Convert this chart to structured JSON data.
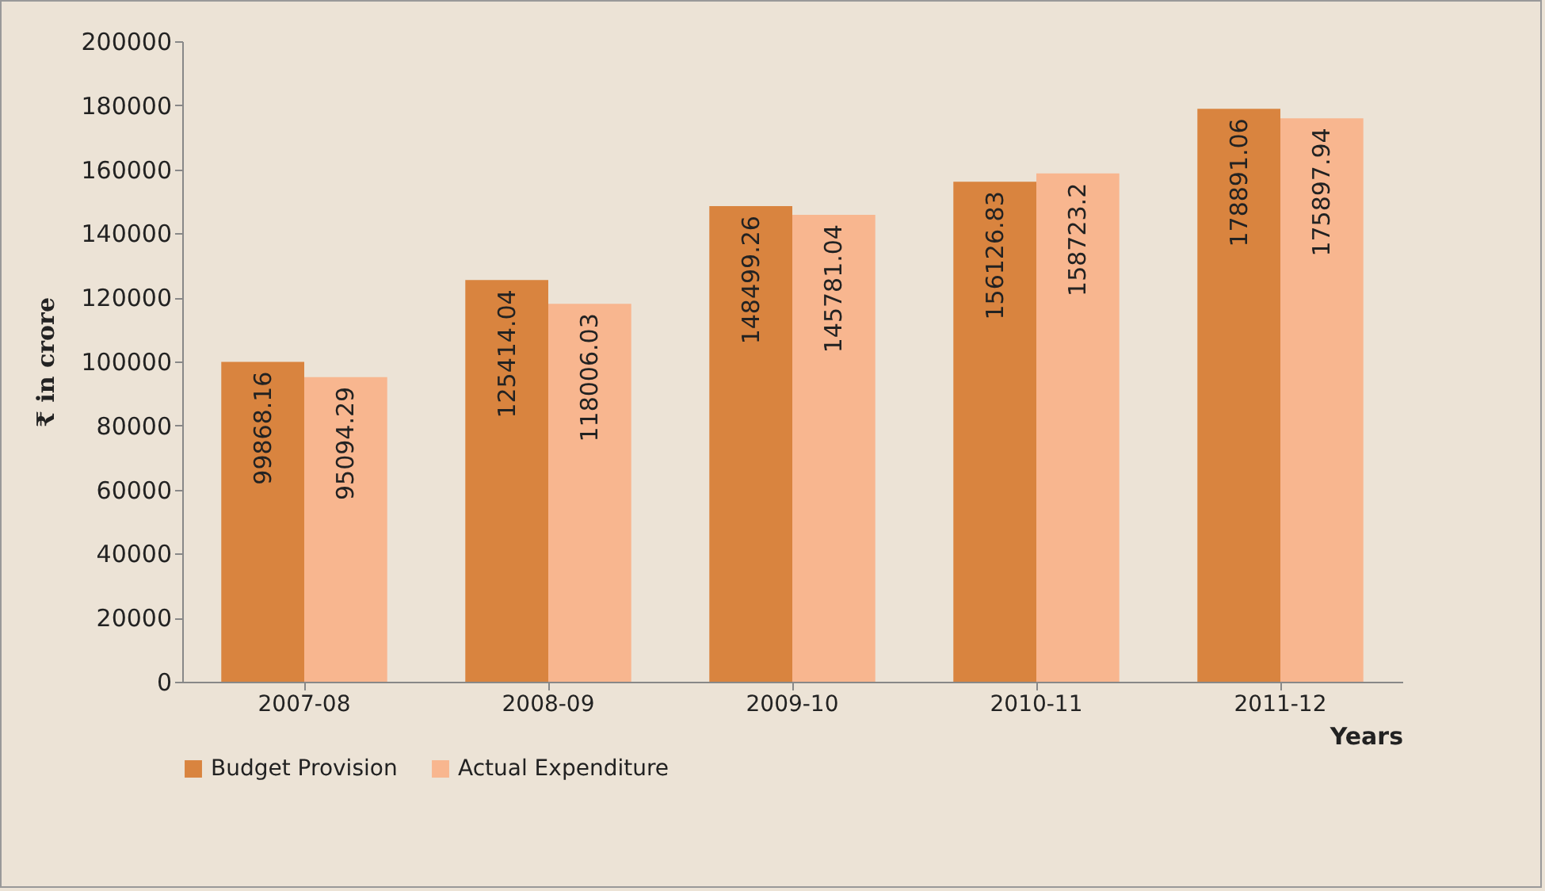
{
  "chart_data": {
    "type": "bar",
    "xlabel": "Years",
    "ylabel": "₹ in crore",
    "categories": [
      "2007-08",
      "2008-09",
      "2009-10",
      "2010-11",
      "2011-12"
    ],
    "series": [
      {
        "name": "Budget Provision",
        "color": "#d9843f",
        "values": [
          99868.16,
          125414.04,
          148499.26,
          156126.83,
          178891.06
        ]
      },
      {
        "name": "Actual Expenditure",
        "color": "#f8b68f",
        "values": [
          95094.29,
          118006.03,
          145781.04,
          158723.2,
          175897.94
        ]
      }
    ],
    "ylim": [
      0,
      200000
    ],
    "yticks": [
      0,
      20000,
      40000,
      60000,
      80000,
      100000,
      120000,
      140000,
      160000,
      180000,
      200000
    ],
    "data_labels": true,
    "legend": "bottom left"
  }
}
